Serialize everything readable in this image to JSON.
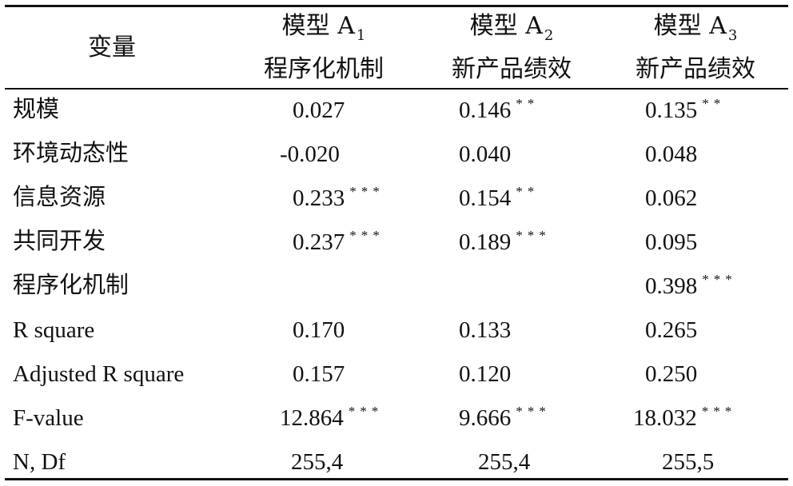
{
  "header": {
    "variable_label": "变量",
    "models": [
      {
        "name": "模型 A",
        "sub": "1",
        "dependent": "程序化机制"
      },
      {
        "name": "模型 A",
        "sub": "2",
        "dependent": "新产品绩效"
      },
      {
        "name": "模型 A",
        "sub": "3",
        "dependent": "新产品绩效"
      }
    ]
  },
  "rows": [
    {
      "variable": "规模",
      "values": [
        {
          "v": "0.027",
          "s": ""
        },
        {
          "v": "0.146",
          "s": "**"
        },
        {
          "v": "0.135",
          "s": "**"
        }
      ]
    },
    {
      "variable": "环境动态性",
      "values": [
        {
          "v": "-0.020",
          "s": ""
        },
        {
          "v": "0.040",
          "s": ""
        },
        {
          "v": "0.048",
          "s": ""
        }
      ]
    },
    {
      "variable": "信息资源",
      "values": [
        {
          "v": "0.233",
          "s": "***"
        },
        {
          "v": "0.154",
          "s": "**"
        },
        {
          "v": "0.062",
          "s": ""
        }
      ]
    },
    {
      "variable": "共同开发",
      "values": [
        {
          "v": "0.237",
          "s": "***"
        },
        {
          "v": "0.189",
          "s": "***"
        },
        {
          "v": "0.095",
          "s": ""
        }
      ]
    },
    {
      "variable": "程序化机制",
      "values": [
        {
          "v": "",
          "s": ""
        },
        {
          "v": "",
          "s": ""
        },
        {
          "v": "0.398",
          "s": "***"
        }
      ]
    },
    {
      "variable": "R square",
      "values": [
        {
          "v": "0.170",
          "s": ""
        },
        {
          "v": "0.133",
          "s": ""
        },
        {
          "v": "0.265",
          "s": ""
        }
      ]
    },
    {
      "variable": "Adjusted R square",
      "values": [
        {
          "v": "0.157",
          "s": ""
        },
        {
          "v": "0.120",
          "s": ""
        },
        {
          "v": "0.250",
          "s": ""
        }
      ]
    },
    {
      "variable": "F-value",
      "values": [
        {
          "v": "12.864",
          "s": "***"
        },
        {
          "v": "9.666",
          "s": "***"
        },
        {
          "v": "18.032",
          "s": "***"
        }
      ]
    },
    {
      "variable": "N, Df",
      "values": [
        {
          "v": "255,4",
          "s": ""
        },
        {
          "v": "255,4",
          "s": ""
        },
        {
          "v": "255,5",
          "s": ""
        }
      ]
    }
  ]
}
